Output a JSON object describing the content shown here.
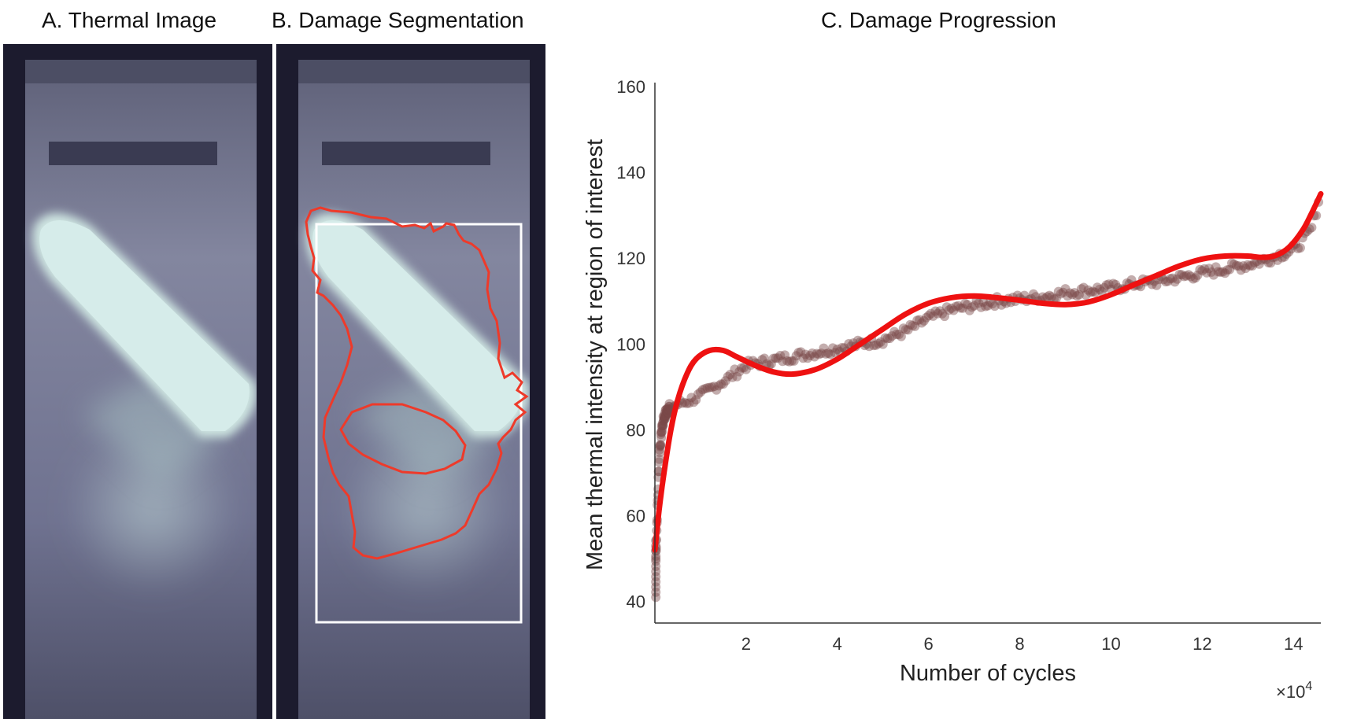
{
  "panels": {
    "a_title": "A. Thermal Image",
    "b_title": "B. Damage Segmentation",
    "c_title": "C. Damage Progression"
  },
  "colors": {
    "background_dark": "#1c1b2e",
    "specimen": "#7a7d98",
    "hot_spot": "#cfe6e2",
    "segmentation_outline": "#ee3a2a",
    "roi_box": "#ffffff",
    "scatter_points": "#7a4a4a",
    "fit_curve": "#ee1111"
  },
  "chart_data": {
    "type": "scatter",
    "title": "C. Damage Progression",
    "xlabel": "Number of cycles",
    "ylabel": "Mean thermal intensity at region of interest",
    "x_multiplier_label": "×10",
    "x_multiplier_exponent": "4",
    "xlim": [
      0,
      14.6
    ],
    "ylim": [
      35,
      160
    ],
    "xticks": [
      2,
      4,
      6,
      8,
      10,
      12,
      14
    ],
    "yticks": [
      40,
      60,
      80,
      100,
      120,
      140,
      160
    ],
    "grid": false,
    "series": [
      {
        "kind": "scatter",
        "x": [
          0.0,
          0.02,
          0.05,
          0.08,
          0.1,
          0.15,
          0.2,
          0.3,
          0.5,
          0.8,
          1.0,
          1.3,
          1.6,
          2.0,
          2.5,
          3.0,
          3.5,
          4.0,
          4.5,
          5.0,
          5.5,
          6.0,
          6.5,
          7.0,
          7.5,
          8.0,
          8.5,
          9.0,
          9.5,
          10.0,
          10.5,
          11.0,
          11.5,
          12.0,
          12.5,
          13.0,
          13.5,
          14.0,
          14.2,
          14.4,
          14.5,
          14.6
        ],
        "y": [
          41,
          50,
          60,
          70,
          75,
          80,
          83,
          85,
          86,
          87,
          88,
          90,
          92,
          95,
          96,
          97,
          98,
          99,
          100,
          101,
          103,
          106,
          108,
          109,
          110,
          110.5,
          111,
          112,
          112.5,
          113,
          114,
          114.5,
          115.5,
          116.5,
          117.5,
          118.5,
          120,
          122,
          124,
          127,
          131,
          136
        ]
      },
      {
        "kind": "line",
        "x": [
          0.0,
          0.05,
          0.1,
          0.2,
          0.35,
          0.5,
          0.7,
          0.9,
          1.2,
          1.5,
          1.8,
          2.2,
          2.6,
          3.0,
          3.5,
          4.0,
          4.5,
          5.0,
          5.5,
          6.0,
          6.5,
          7.0,
          7.5,
          8.0,
          8.5,
          9.0,
          9.5,
          10.0,
          10.5,
          11.0,
          11.5,
          12.0,
          12.5,
          13.0,
          13.3,
          13.6,
          13.9,
          14.2,
          14.4,
          14.6
        ],
        "y": [
          52,
          57,
          62,
          70,
          80,
          87,
          93,
          96.5,
          98.5,
          98.5,
          97,
          95,
          93.5,
          93,
          94,
          96.5,
          100,
          103.5,
          107,
          109.5,
          110.8,
          111.2,
          110.8,
          110.2,
          109.5,
          109.2,
          109.8,
          111.5,
          113.8,
          116,
          118.2,
          119.8,
          120.5,
          120.5,
          120.2,
          120.6,
          122.5,
          126.5,
          130.5,
          135
        ]
      }
    ]
  }
}
